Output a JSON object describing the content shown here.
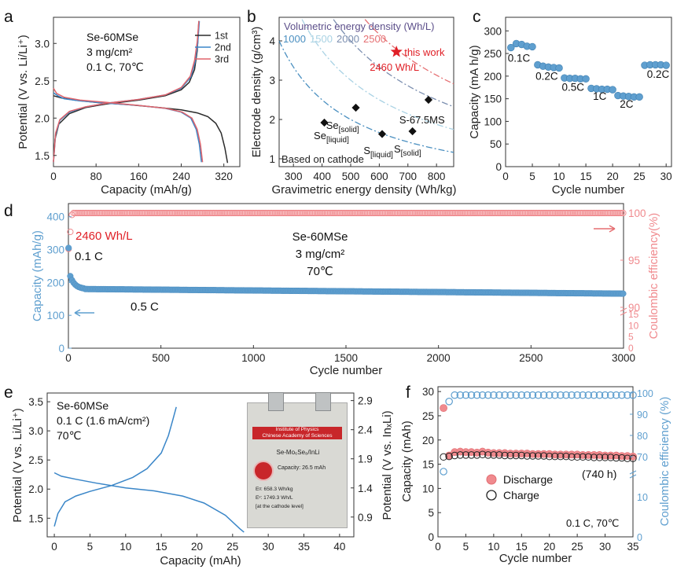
{
  "labels": {
    "a": "a",
    "b": "b",
    "c": "c",
    "d": "d",
    "e": "e",
    "f": "f"
  },
  "chart_data": [
    {
      "id": "a",
      "type": "line",
      "xlabel": "Capacity (mAh/g)",
      "ylabel": "Potential (V vs. Li/Li⁺)",
      "xlim": [
        0,
        350
      ],
      "ylim": [
        1.35,
        3.35
      ],
      "xticks": [
        "0",
        "80",
        "160",
        "240",
        "320"
      ],
      "yticks": [
        "1.5",
        "2.0",
        "2.5",
        "3.0"
      ],
      "annotation": [
        "Se-60MSe",
        "3 mg/cm²",
        "0.1 C, 70℃"
      ],
      "series": [
        {
          "name": "1st",
          "color": "#2b2b2b",
          "discharge": [
            [
              0,
              2.3
            ],
            [
              15,
              2.27
            ],
            [
              40,
              2.24
            ],
            [
              80,
              2.21
            ],
            [
              140,
              2.18
            ],
            [
              200,
              2.14
            ],
            [
              240,
              2.11
            ],
            [
              270,
              2.07
            ],
            [
              290,
              2.02
            ],
            [
              305,
              1.93
            ],
            [
              315,
              1.8
            ],
            [
              322,
              1.6
            ],
            [
              327,
              1.4
            ]
          ],
          "charge": [
            [
              0,
              1.42
            ],
            [
              3,
              1.72
            ],
            [
              10,
              1.92
            ],
            [
              30,
              2.06
            ],
            [
              60,
              2.14
            ],
            [
              100,
              2.19
            ],
            [
              160,
              2.24
            ],
            [
              210,
              2.3
            ],
            [
              240,
              2.38
            ],
            [
              255,
              2.48
            ],
            [
              265,
              2.65
            ],
            [
              270,
              2.9
            ],
            [
              273,
              3.3
            ]
          ]
        },
        {
          "name": "2nd",
          "color": "#3a86c8",
          "discharge": [
            [
              0,
              2.34
            ],
            [
              8,
              2.3
            ],
            [
              20,
              2.26
            ],
            [
              50,
              2.23
            ],
            [
              100,
              2.2
            ],
            [
              160,
              2.17
            ],
            [
              210,
              2.13
            ],
            [
              240,
              2.08
            ],
            [
              258,
              2.0
            ],
            [
              268,
              1.85
            ],
            [
              274,
              1.65
            ],
            [
              278,
              1.41
            ]
          ],
          "charge": [
            [
              0,
              1.41
            ],
            [
              4,
              1.78
            ],
            [
              12,
              1.97
            ],
            [
              30,
              2.08
            ],
            [
              60,
              2.15
            ],
            [
              100,
              2.2
            ],
            [
              160,
              2.25
            ],
            [
              210,
              2.31
            ],
            [
              240,
              2.4
            ],
            [
              258,
              2.55
            ],
            [
              266,
              2.75
            ],
            [
              271,
              3.0
            ],
            [
              274,
              3.3
            ]
          ]
        },
        {
          "name": "3rd",
          "color": "#e0646b",
          "discharge": [
            [
              0,
              2.4
            ],
            [
              6,
              2.33
            ],
            [
              20,
              2.28
            ],
            [
              50,
              2.24
            ],
            [
              100,
              2.21
            ],
            [
              160,
              2.17
            ],
            [
              212,
              2.13
            ],
            [
              242,
              2.08
            ],
            [
              260,
              2.0
            ],
            [
              270,
              1.85
            ],
            [
              276,
              1.65
            ],
            [
              280,
              1.41
            ]
          ],
          "charge": [
            [
              0,
              1.41
            ],
            [
              4,
              1.8
            ],
            [
              12,
              1.98
            ],
            [
              30,
              2.09
            ],
            [
              60,
              2.15
            ],
            [
              100,
              2.2
            ],
            [
              160,
              2.25
            ],
            [
              210,
              2.31
            ],
            [
              240,
              2.41
            ],
            [
              257,
              2.56
            ],
            [
              265,
              2.77
            ],
            [
              270,
              3.02
            ],
            [
              273,
              3.3
            ]
          ]
        }
      ]
    },
    {
      "id": "b",
      "type": "scatter",
      "xlabel": "Gravimetric energy density (Wh/kg)",
      "ylabel": "Electrode density (g/cm³)",
      "xlim": [
        250,
        860
      ],
      "ylim": [
        0.8,
        4.6
      ],
      "xticks": [
        "300",
        "400",
        "500",
        "600",
        "700",
        "800"
      ],
      "yticks": [
        "1",
        "2",
        "3",
        "4"
      ],
      "legend_title": "Volumetric energy density (Wh/L)",
      "iso_lines": [
        {
          "label": "1000",
          "value": 1000,
          "color": "#4a8fc0"
        },
        {
          "label": "1500",
          "value": 1500,
          "color": "#a9d2e4"
        },
        {
          "label": "2000",
          "value": 2000,
          "color": "#7c8fb0"
        },
        {
          "label": "2500",
          "value": 2500,
          "color": "#e56f72"
        }
      ],
      "points": [
        {
          "name": "Se[liquid]",
          "base": "Se",
          "sub": "[liquid]",
          "x": 408,
          "y": 1.92
        },
        {
          "name": "Se[solid]",
          "base": "Se",
          "sub": "[solid]",
          "x": 518,
          "y": 2.3
        },
        {
          "name": "S[liquid]",
          "base": "S",
          "sub": "[liquid]",
          "x": 610,
          "y": 1.63
        },
        {
          "name": "S[solid]",
          "base": "S",
          "sub": "[solid]",
          "x": 716,
          "y": 1.7
        },
        {
          "name": "S-67.5MS",
          "base": "S-67.5MS",
          "sub": "",
          "x": 772,
          "y": 2.5
        }
      ],
      "highlight": {
        "name": "this work",
        "x": 660,
        "y": 3.72,
        "label": "2460 Wh/L",
        "color": "#e02027"
      },
      "footnote": "Based on cathode"
    },
    {
      "id": "c",
      "type": "scatter",
      "xlabel": "Cycle number",
      "ylabel": "Capacity (mA h/g)",
      "xlim": [
        0,
        31
      ],
      "ylim": [
        0,
        330
      ],
      "xticks": [
        "0",
        "5",
        "10",
        "15",
        "20",
        "25",
        "30"
      ],
      "yticks": [
        "0",
        "50",
        "100",
        "150",
        "200",
        "250",
        "300"
      ],
      "color": "#5f9fcf",
      "values": [
        263,
        272,
        270,
        266,
        265,
        225,
        222,
        220,
        219,
        218,
        196,
        195,
        195,
        194,
        194,
        173,
        172,
        171,
        171,
        170,
        157,
        156,
        155,
        154,
        154,
        224,
        225,
        225,
        225,
        224
      ],
      "rates": [
        "0.1C",
        "0.2C",
        "0.5C",
        "1C",
        "2C",
        "0.2C"
      ]
    },
    {
      "id": "d",
      "type": "scatter",
      "xlabel": "Cycle number",
      "ylabel": "Capacity (mAh/g)",
      "y2label": "Coulombic efficiency(%)",
      "xlim": [
        0,
        3000
      ],
      "ylim": [
        0,
        440
      ],
      "xticks": [
        "0",
        "500",
        "1000",
        "1500",
        "2000",
        "2500",
        "3000"
      ],
      "yticks": [
        "0",
        "100",
        "200",
        "300",
        "400"
      ],
      "y2ticks_upper": [
        "90",
        "95",
        "100"
      ],
      "y2ticks_lower": [
        "0",
        "5",
        "10",
        "15"
      ],
      "capacity_color": "#5f9fcf",
      "ce_color": "#f08a8e",
      "capacity_first": 305,
      "capacity_peak": 232,
      "capacity_plateau": 180,
      "capacity_end": 166,
      "ce_value": 100,
      "annotations": {
        "energy": "2460 Wh/L",
        "rate1": "0.1 C",
        "rate2": "0.5 C",
        "sample": "Se-60MSe",
        "loading": "3 mg/cm²",
        "temp": "70℃"
      }
    },
    {
      "id": "e",
      "type": "line",
      "xlabel": "Capacity (mAh)",
      "ylabel": "Potential (V vs. Li/Li⁺)",
      "y2label": "Potential (V vs. InₓLi)",
      "xlim": [
        -1,
        42
      ],
      "ylim": [
        1.18,
        3.65
      ],
      "xticks": [
        "0",
        "5",
        "10",
        "15",
        "20",
        "25",
        "30",
        "35",
        "40"
      ],
      "yticks": [
        "1.5",
        "2.0",
        "2.5",
        "3.0",
        "3.5"
      ],
      "y2ticks": [
        "0.9",
        "1.4",
        "1.9",
        "2.4",
        "2.9"
      ],
      "color": "#3a86c8",
      "annotation": [
        "Se-60MSe",
        "0.1 C (1.6 mA/cm²)",
        "70℃"
      ],
      "discharge": [
        [
          0,
          2.28
        ],
        [
          1,
          2.22
        ],
        [
          3,
          2.17
        ],
        [
          6,
          2.1
        ],
        [
          10,
          2.02
        ],
        [
          14,
          1.97
        ],
        [
          18,
          1.88
        ],
        [
          21,
          1.76
        ],
        [
          24,
          1.55
        ],
        [
          26,
          1.32
        ],
        [
          26.6,
          1.26
        ]
      ],
      "charge": [
        [
          0,
          1.36
        ],
        [
          0.5,
          1.58
        ],
        [
          1.5,
          1.78
        ],
        [
          3,
          1.88
        ],
        [
          5,
          1.96
        ],
        [
          8,
          2.06
        ],
        [
          11,
          2.2
        ],
        [
          13,
          2.35
        ],
        [
          15,
          2.62
        ],
        [
          16,
          2.92
        ],
        [
          16.6,
          3.18
        ],
        [
          17.1,
          3.41
        ]
      ],
      "photo": {
        "band1": "Institute of Physics",
        "band2": "Chinese Academy of Sciences",
        "title": "Se-Mo₆Se₈/InLi",
        "capacity": "Capacity: 26.5 mAh",
        "eg": "Eᵍ: 658.3 Wh/kg",
        "ev": "Eᵛ: 1749.3 Wh/L",
        "level": "[at the cathode level]"
      }
    },
    {
      "id": "f",
      "type": "scatter",
      "xlabel": "Cycle number",
      "ylabel": "Capacity (mAh)",
      "y2label": "Coulombic efficiency (%)",
      "xlim": [
        0,
        35
      ],
      "ylim": [
        0,
        31
      ],
      "xticks": [
        "0",
        "5",
        "10",
        "15",
        "20",
        "25",
        "30",
        "35"
      ],
      "yticks": [
        "0",
        "5",
        "10",
        "15",
        "20",
        "25",
        "30"
      ],
      "y2ticks_upper": [
        "70",
        "80",
        "90",
        "100"
      ],
      "y2ticks_lower": [
        "0",
        "10"
      ],
      "discharge_color": "#f08a8e",
      "charge_color": "#222222",
      "ce_color": "#5f9fcf",
      "discharge": [
        26.6,
        16.8,
        17.5,
        17.6,
        17.5,
        17.5,
        17.4,
        17.6,
        17.4,
        17.3,
        17.3,
        17.3,
        17.2,
        17.2,
        17.2,
        17.2,
        17.1,
        17.1,
        17.1,
        17.1,
        17.0,
        17.0,
        17.0,
        17.0,
        17.0,
        16.9,
        16.9,
        16.9,
        16.9,
        16.8,
        16.8,
        16.8,
        16.7,
        16.7,
        16.6
      ],
      "charge": [
        16.5,
        16.6,
        16.8,
        16.9,
        16.9,
        16.9,
        16.9,
        17.0,
        16.9,
        16.9,
        16.9,
        16.8,
        16.8,
        16.8,
        16.8,
        16.7,
        16.7,
        16.7,
        16.7,
        16.6,
        16.6,
        16.6,
        16.6,
        16.5,
        16.5,
        16.5,
        16.5,
        16.4,
        16.4,
        16.4,
        16.4,
        16.3,
        16.3,
        16.2,
        16.2
      ],
      "ce": [
        66,
        96,
        99,
        99,
        99,
        99,
        99,
        99,
        99,
        99,
        99,
        99,
        99,
        99,
        99,
        99,
        99,
        99,
        99,
        99,
        99,
        99,
        99,
        99,
        99,
        99,
        99,
        99,
        99,
        99,
        99,
        99,
        99,
        99,
        99
      ],
      "legend": [
        "Discharge",
        "Charge"
      ],
      "annotations": {
        "hours": "(740 h)",
        "cond": "0.1 C, 70℃"
      }
    }
  ]
}
